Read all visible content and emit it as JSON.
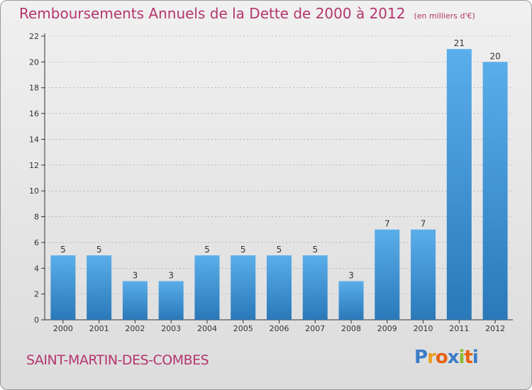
{
  "title": "Remboursements Annuels de la Dette de 2000 à 2012",
  "unit_note": "(en milliers d'€)",
  "town": "SAINT-MARTIN-DES-COMBES",
  "brand": {
    "letters": [
      "P",
      "r",
      "o",
      "x",
      "i",
      "t",
      "i"
    ],
    "colors": [
      "#3a7cc8",
      "#e8a020",
      "#e86010",
      "#3a7cc8",
      "#8cbc30",
      "#e86010",
      "#3a7cc8"
    ]
  },
  "colors": {
    "title": "#b4366e",
    "bar_light": "#5aaeea",
    "bar_dark": "#2a78b8",
    "axis": "#333333",
    "grid": "#9a9a9a"
  },
  "chart_data": {
    "type": "bar",
    "categories": [
      "2000",
      "2001",
      "2002",
      "2003",
      "2004",
      "2005",
      "2006",
      "2007",
      "2008",
      "2009",
      "2010",
      "2011",
      "2012"
    ],
    "values": [
      5,
      5,
      3,
      3,
      5,
      5,
      5,
      5,
      3,
      7,
      7,
      21,
      20
    ],
    "data_labels": [
      "5",
      "5",
      "3",
      "3",
      "5",
      "5",
      "5",
      "5",
      "3",
      "7",
      "7",
      "21",
      "20"
    ],
    "y_ticks": [
      "0",
      "2",
      "4",
      "6",
      "8",
      "10",
      "12",
      "14",
      "16",
      "18",
      "20",
      "22"
    ],
    "ylim": [
      0,
      22
    ],
    "title": "Remboursements Annuels de la Dette de 2000 à 2012",
    "xlabel": "",
    "ylabel": "",
    "grid": true,
    "legend": "none"
  }
}
